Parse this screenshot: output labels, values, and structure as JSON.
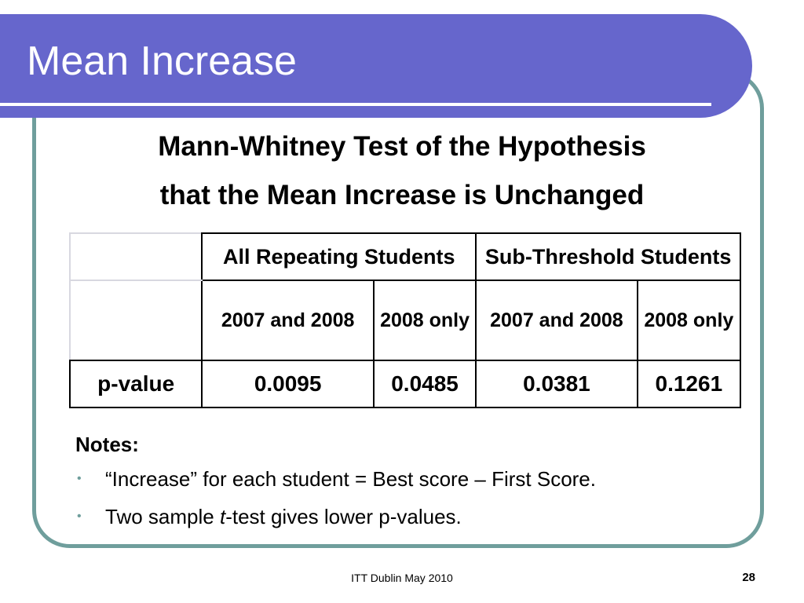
{
  "slide": {
    "title": "Mean Increase",
    "subtitle_line1": "Mann-Whitney Test of the Hypothesis",
    "subtitle_line2": "that the Mean Increase is Unchanged"
  },
  "table": {
    "group_headers": [
      "All Repeating Students",
      "Sub-Threshold Students"
    ],
    "sub_headers": [
      "2007 and 2008",
      "2008 only",
      "2007 and 2008",
      "2008 only"
    ],
    "row_label": "p-value",
    "values": [
      "0.0095",
      "0.0485",
      "0.0381",
      "0.1261"
    ]
  },
  "notes": {
    "title": "Notes:",
    "bullet1": "“Increase” for each student = Best score – First Score.",
    "bullet2_pre": "Two sample ",
    "bullet2_italic": "t",
    "bullet2_post": "-test gives lower p-values."
  },
  "footer": {
    "center_text": "ITT Dublin May 2010",
    "page_number": "28"
  },
  "colors": {
    "title_bar": "#6666cc",
    "frame_border": "#6f9e9c"
  }
}
